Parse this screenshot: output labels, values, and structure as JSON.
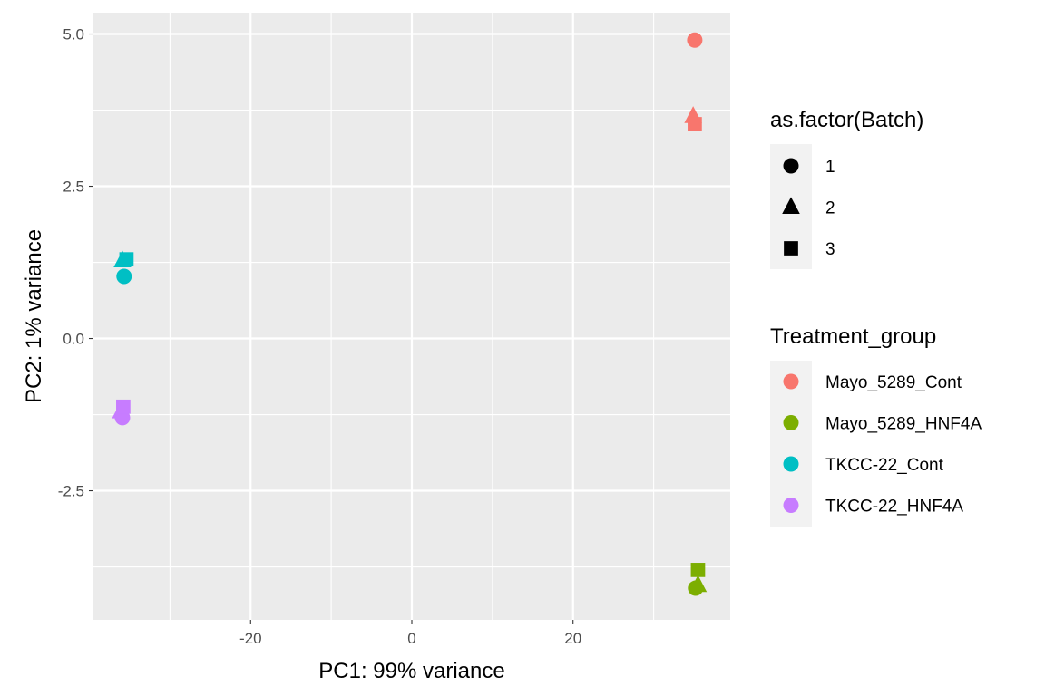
{
  "chart_data": {
    "type": "scatter",
    "title": "",
    "xlabel": "PC1: 99% variance",
    "ylabel": "PC2: 1% variance",
    "xlim": [
      -39.5,
      39.5
    ],
    "ylim": [
      -4.62,
      5.35
    ],
    "x_ticks": [
      -20,
      0,
      20
    ],
    "x_tick_labels": [
      "-20",
      "0",
      "20"
    ],
    "y_ticks": [
      5.0,
      2.5,
      0.0,
      -2.5
    ],
    "y_tick_labels": [
      "5.0",
      "2.5",
      "0.0",
      "-2.5"
    ],
    "grid": true,
    "legend_position": "right",
    "shape_legend": {
      "title": "as.factor(Batch)",
      "items": [
        {
          "label": "1",
          "shape": "circle"
        },
        {
          "label": "2",
          "shape": "triangle"
        },
        {
          "label": "3",
          "shape": "square"
        }
      ]
    },
    "color_legend": {
      "title": "Treatment_group",
      "items": [
        {
          "label": "Mayo_5289_Cont",
          "color": "#F8766D"
        },
        {
          "label": "Mayo_5289_HNF4A",
          "color": "#7CAE00"
        },
        {
          "label": "TKCC-22_Cont",
          "color": "#00BFC4"
        },
        {
          "label": "TKCC-22_HNF4A",
          "color": "#C77CFF"
        }
      ]
    },
    "points": [
      {
        "x": 35.1,
        "y": 4.9,
        "group": "Mayo_5289_Cont",
        "batch": "1"
      },
      {
        "x": 34.9,
        "y": 3.65,
        "group": "Mayo_5289_Cont",
        "batch": "2"
      },
      {
        "x": 35.1,
        "y": 3.52,
        "group": "Mayo_5289_Cont",
        "batch": "3"
      },
      {
        "x": 35.2,
        "y": -4.1,
        "group": "Mayo_5289_HNF4A",
        "batch": "1"
      },
      {
        "x": 35.5,
        "y": -4.05,
        "group": "Mayo_5289_HNF4A",
        "batch": "2"
      },
      {
        "x": 35.5,
        "y": -3.8,
        "group": "Mayo_5289_HNF4A",
        "batch": "3"
      },
      {
        "x": -35.7,
        "y": 1.02,
        "group": "TKCC-22_Cont",
        "batch": "1"
      },
      {
        "x": -35.9,
        "y": 1.28,
        "group": "TKCC-22_Cont",
        "batch": "2"
      },
      {
        "x": -35.4,
        "y": 1.3,
        "group": "TKCC-22_Cont",
        "batch": "3"
      },
      {
        "x": -35.9,
        "y": -1.3,
        "group": "TKCC-22_HNF4A",
        "batch": "1"
      },
      {
        "x": -36.1,
        "y": -1.2,
        "group": "TKCC-22_HNF4A",
        "batch": "2"
      },
      {
        "x": -35.8,
        "y": -1.12,
        "group": "TKCC-22_HNF4A",
        "batch": "3"
      }
    ]
  }
}
